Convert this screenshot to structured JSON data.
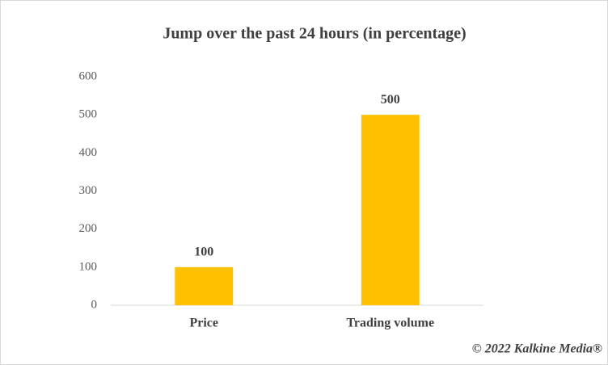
{
  "chart_data": {
    "type": "bar",
    "title": "Jump over the past 24 hours (in percentage)",
    "categories": [
      "Price",
      "Trading volume"
    ],
    "values": [
      100,
      500
    ],
    "color": "#ffc000",
    "ylim": [
      0,
      600
    ],
    "yticks": [
      0,
      100,
      200,
      300,
      400,
      500,
      600
    ],
    "grid": false,
    "data_labels": true,
    "footer": "© 2022 Kalkine Media®"
  }
}
